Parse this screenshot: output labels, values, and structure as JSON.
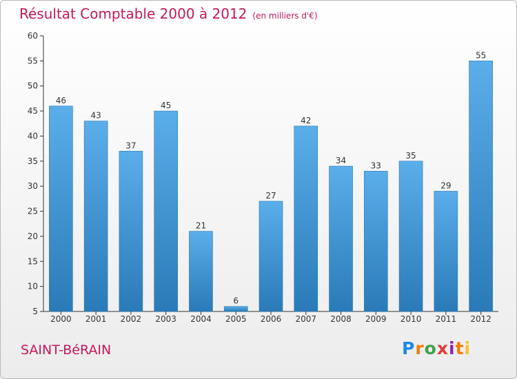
{
  "header": {
    "title": "Résultat Comptable 2000 à 2012",
    "unit": "(en milliers d'€)"
  },
  "footer": {
    "town": "SAINT-BéRAIN",
    "logo": "Proxiti"
  },
  "colors": {
    "title": "#c2185b",
    "bar_light": "#5aaeea",
    "bar_dark": "#2a7ab8",
    "axis": "#333333"
  },
  "chart_data": {
    "type": "bar",
    "title": "Résultat Comptable 2000 à 2012",
    "subtitle": "(en milliers d'€)",
    "xlabel": "",
    "ylabel": "",
    "categories": [
      "2000",
      "2001",
      "2002",
      "2003",
      "2004",
      "2005",
      "2006",
      "2007",
      "2008",
      "2009",
      "2010",
      "2011",
      "2012"
    ],
    "values": [
      46,
      43,
      37,
      45,
      21,
      6,
      27,
      42,
      34,
      33,
      35,
      29,
      55
    ],
    "ylim": [
      5,
      60
    ],
    "yticks": [
      5,
      10,
      15,
      20,
      25,
      30,
      35,
      40,
      45,
      50,
      55,
      60
    ],
    "grid": false,
    "legend": "none"
  }
}
